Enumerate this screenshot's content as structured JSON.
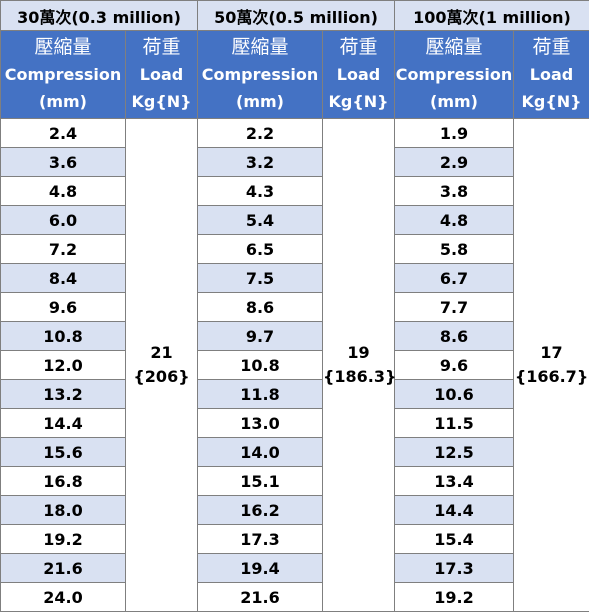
{
  "groups": [
    {
      "title": "30萬次(0.3 million)",
      "compression_header": {
        "zh": "壓縮量",
        "en": "Compression",
        "unit": "(mm)"
      },
      "load_header": {
        "zh": "荷重",
        "en": "Load",
        "unit": "Kg{N}"
      },
      "compression": [
        "2.4",
        "3.6",
        "4.8",
        "6.0",
        "7.2",
        "8.4",
        "9.6",
        "10.8",
        "12.0",
        "13.2",
        "14.4",
        "15.6",
        "16.8",
        "18.0",
        "19.2",
        "21.6",
        "24.0"
      ],
      "load_value": "21",
      "load_n": "{206}"
    },
    {
      "title": "50萬次(0.5 million)",
      "compression_header": {
        "zh": "壓縮量",
        "en": "Compression",
        "unit": "(mm)"
      },
      "load_header": {
        "zh": "荷重",
        "en": "Load",
        "unit": "Kg{N}"
      },
      "compression": [
        "2.2",
        "3.2",
        "4.3",
        "5.4",
        "6.5",
        "7.5",
        "8.6",
        "9.7",
        "10.8",
        "11.8",
        "13.0",
        "14.0",
        "15.1",
        "16.2",
        "17.3",
        "19.4",
        "21.6"
      ],
      "load_value": "19",
      "load_n": "{186.3}"
    },
    {
      "title": "100萬次(1 million)",
      "compression_header": {
        "zh": "壓縮量",
        "en": "Compression",
        "unit": "(mm)"
      },
      "load_header": {
        "zh": "荷重",
        "en": "Load",
        "unit": "Kg{N}"
      },
      "compression": [
        "1.9",
        "2.9",
        "3.8",
        "4.8",
        "5.8",
        "6.7",
        "7.7",
        "8.6",
        "9.6",
        "10.6",
        "11.5",
        "12.5",
        "13.4",
        "14.4",
        "15.4",
        "17.3",
        "19.2"
      ],
      "load_value": "17",
      "load_n": "{166.7}"
    }
  ],
  "colors": {
    "header_blue": "#4472c4",
    "band_light_blue": "#d9e1f2",
    "border_gray": "#7f7f7f"
  }
}
